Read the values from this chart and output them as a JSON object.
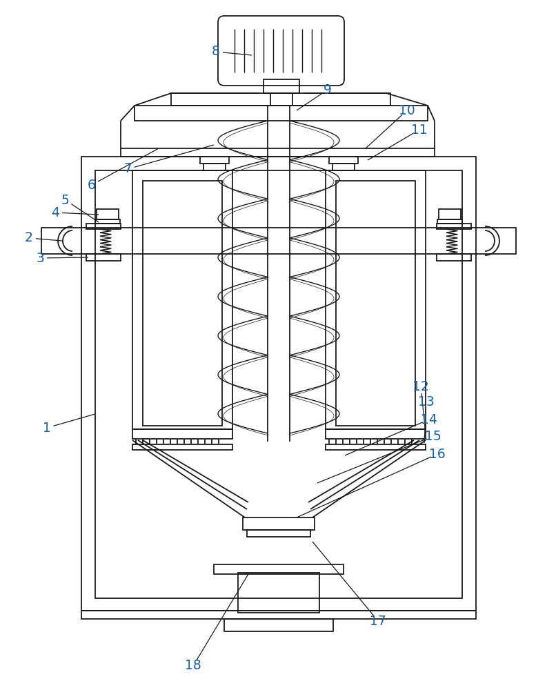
{
  "bg_color": "#ffffff",
  "line_color": "#1a1a1a",
  "label_color": "#1a5fa8",
  "label_fontsize": 13.5,
  "lw": 1.3,
  "fig_width": 8.06,
  "fig_height": 10.0
}
